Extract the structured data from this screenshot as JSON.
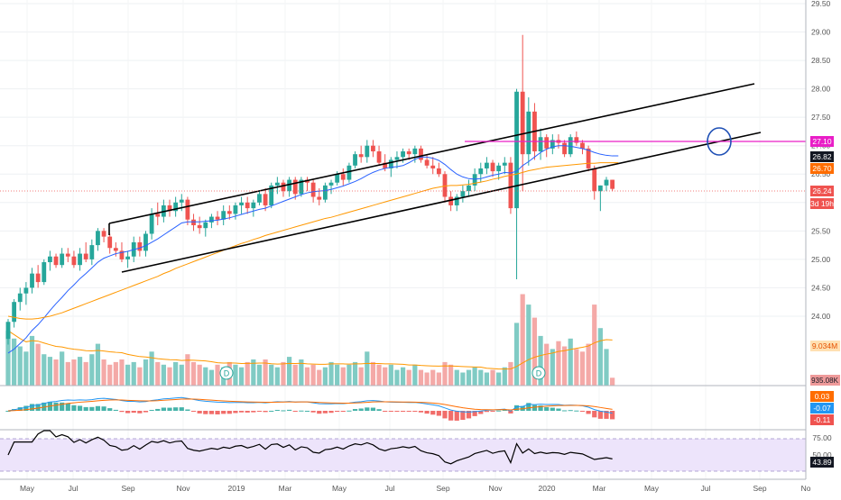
{
  "price_axis": {
    "ticks": [
      "29.50",
      "29.00",
      "28.50",
      "28.00",
      "27.50",
      "27.00",
      "26.50",
      "26.00",
      "25.50",
      "25.00",
      "24.50",
      "24.00"
    ],
    "min": 23.6,
    "max": 29.5
  },
  "time_axis": {
    "labels": [
      "May",
      "Jul",
      "Sep",
      "Nov",
      "2019",
      "Mar",
      "May",
      "Jul",
      "Sep",
      "Nov",
      "2020",
      "Mar",
      "May",
      "Jul",
      "Sep",
      "No"
    ]
  },
  "badges": {
    "horizontal_level": "27.10",
    "ma_fast": "26.82",
    "ma_slow": "26.70",
    "last_price": "26.24",
    "countdown": "3d 19h",
    "volume_ma": "9.034M",
    "volume": "935.08K",
    "macd_line": "0.03",
    "macd_signal": "-0.07",
    "macd_hist": "-0.11",
    "rsi_upper": "75.00",
    "rsi_value": "43.89",
    "rsi_mid": "50.00"
  },
  "dividend_marker": "D",
  "colors": {
    "up": "#26a69a",
    "down": "#ef5350",
    "ma_fast": "#2962ff",
    "ma_slow": "#ff9800",
    "trendline": "#000000",
    "level": "#e91ec7",
    "circle": "#1e4fb5",
    "rsi_band": "#ede4fb"
  },
  "chart_data": {
    "type": "candlestick",
    "period": "weekly",
    "start": "2018-04",
    "candles": [
      [
        23.6,
        23.95,
        23.5,
        23.9
      ],
      [
        23.9,
        24.3,
        23.8,
        24.25
      ],
      [
        24.25,
        24.5,
        24.1,
        24.4
      ],
      [
        24.4,
        24.6,
        24.2,
        24.5
      ],
      [
        24.5,
        24.85,
        24.4,
        24.75
      ],
      [
        24.75,
        24.9,
        24.5,
        24.6
      ],
      [
        24.6,
        25.0,
        24.55,
        24.95
      ],
      [
        24.95,
        25.15,
        24.8,
        25.05
      ],
      [
        25.05,
        25.1,
        24.85,
        24.9
      ],
      [
        24.9,
        25.2,
        24.85,
        25.1
      ],
      [
        25.1,
        25.2,
        24.95,
        25.05
      ],
      [
        25.05,
        25.15,
        24.85,
        24.9
      ],
      [
        24.9,
        25.2,
        24.8,
        25.1
      ],
      [
        25.1,
        25.3,
        24.95,
        25.0
      ],
      [
        25.0,
        25.35,
        24.9,
        25.25
      ],
      [
        25.25,
        25.55,
        25.15,
        25.5
      ],
      [
        25.5,
        25.55,
        25.3,
        25.4
      ],
      [
        25.4,
        25.45,
        25.1,
        25.2
      ],
      [
        25.2,
        25.3,
        25.05,
        25.15
      ],
      [
        25.15,
        25.3,
        24.95,
        25.0
      ],
      [
        25.0,
        25.15,
        24.85,
        25.05
      ],
      [
        25.05,
        25.4,
        24.95,
        25.3
      ],
      [
        25.3,
        25.4,
        25.05,
        25.15
      ],
      [
        25.15,
        25.5,
        25.05,
        25.45
      ],
      [
        25.45,
        25.9,
        25.35,
        25.8
      ],
      [
        25.8,
        26.0,
        25.6,
        25.75
      ],
      [
        25.75,
        26.05,
        25.65,
        25.95
      ],
      [
        25.95,
        26.05,
        25.75,
        25.85
      ],
      [
        25.85,
        26.1,
        25.75,
        26.0
      ],
      [
        26.0,
        26.15,
        25.85,
        26.05
      ],
      [
        26.05,
        26.1,
        25.6,
        25.7
      ],
      [
        25.7,
        25.8,
        25.5,
        25.6
      ],
      [
        25.6,
        25.75,
        25.45,
        25.55
      ],
      [
        25.55,
        25.7,
        25.4,
        25.65
      ],
      [
        25.65,
        25.8,
        25.55,
        25.75
      ],
      [
        25.75,
        25.85,
        25.6,
        25.7
      ],
      [
        25.7,
        25.95,
        25.6,
        25.85
      ],
      [
        25.85,
        25.95,
        25.7,
        25.8
      ],
      [
        25.8,
        26.0,
        25.7,
        25.95
      ],
      [
        25.95,
        26.1,
        25.8,
        26.0
      ],
      [
        26.0,
        26.1,
        25.8,
        25.9
      ],
      [
        25.9,
        26.05,
        25.75,
        26.0
      ],
      [
        26.0,
        26.2,
        25.95,
        26.15
      ],
      [
        26.15,
        26.25,
        25.85,
        25.95
      ],
      [
        25.95,
        26.35,
        25.9,
        26.3
      ],
      [
        26.3,
        26.45,
        26.15,
        26.35
      ],
      [
        26.35,
        26.4,
        26.1,
        26.2
      ],
      [
        26.2,
        26.45,
        26.1,
        26.4
      ],
      [
        26.4,
        26.45,
        26.05,
        26.15
      ],
      [
        26.15,
        26.45,
        26.1,
        26.4
      ],
      [
        26.4,
        26.45,
        26.2,
        26.35
      ],
      [
        26.35,
        26.4,
        26.0,
        26.1
      ],
      [
        26.1,
        26.25,
        25.95,
        26.05
      ],
      [
        26.05,
        26.35,
        26.0,
        26.3
      ],
      [
        26.3,
        26.4,
        26.15,
        26.35
      ],
      [
        26.35,
        26.55,
        26.3,
        26.5
      ],
      [
        26.5,
        26.6,
        26.3,
        26.4
      ],
      [
        26.4,
        26.7,
        26.35,
        26.65
      ],
      [
        26.65,
        26.9,
        26.6,
        26.85
      ],
      [
        26.85,
        27.0,
        26.7,
        26.8
      ],
      [
        26.8,
        27.1,
        26.7,
        27.0
      ],
      [
        27.0,
        27.1,
        26.8,
        26.9
      ],
      [
        26.9,
        27.0,
        26.65,
        26.7
      ],
      [
        26.7,
        26.85,
        26.55,
        26.6
      ],
      [
        26.6,
        26.8,
        26.45,
        26.75
      ],
      [
        26.75,
        26.9,
        26.6,
        26.8
      ],
      [
        26.8,
        26.95,
        26.7,
        26.9
      ],
      [
        26.9,
        26.95,
        26.75,
        26.85
      ],
      [
        26.85,
        27.0,
        26.7,
        26.95
      ],
      [
        26.95,
        27.0,
        26.7,
        26.75
      ],
      [
        26.75,
        26.85,
        26.6,
        26.65
      ],
      [
        26.65,
        26.8,
        26.5,
        26.6
      ],
      [
        26.6,
        26.7,
        26.45,
        26.5
      ],
      [
        26.5,
        26.55,
        26.0,
        26.1
      ],
      [
        26.1,
        26.2,
        25.85,
        25.95
      ],
      [
        25.95,
        26.15,
        25.85,
        26.1
      ],
      [
        26.1,
        26.3,
        26.0,
        26.2
      ],
      [
        26.2,
        26.4,
        26.1,
        26.3
      ],
      [
        26.3,
        26.6,
        26.2,
        26.5
      ],
      [
        26.5,
        26.7,
        26.35,
        26.6
      ],
      [
        26.6,
        26.8,
        26.5,
        26.7
      ],
      [
        26.7,
        26.75,
        26.45,
        26.55
      ],
      [
        26.55,
        26.7,
        26.4,
        26.65
      ],
      [
        26.65,
        26.8,
        26.5,
        26.7
      ],
      [
        26.7,
        26.8,
        25.8,
        25.9
      ],
      [
        25.9,
        28.0,
        24.65,
        27.95
      ],
      [
        27.95,
        28.95,
        26.2,
        26.85
      ],
      [
        26.85,
        27.85,
        26.65,
        27.6
      ],
      [
        27.6,
        27.75,
        26.75,
        26.9
      ],
      [
        26.9,
        27.3,
        26.75,
        27.15
      ],
      [
        27.15,
        27.2,
        26.8,
        26.95
      ],
      [
        26.95,
        27.2,
        26.85,
        27.1
      ],
      [
        27.1,
        27.2,
        26.95,
        27.05
      ],
      [
        27.05,
        27.1,
        26.8,
        26.85
      ],
      [
        26.85,
        27.2,
        26.8,
        27.15
      ],
      [
        27.15,
        27.25,
        27.0,
        27.05
      ],
      [
        27.05,
        27.1,
        26.85,
        26.95
      ],
      [
        26.95,
        27.0,
        26.55,
        26.6
      ],
      [
        26.6,
        26.65,
        26.05,
        26.2
      ],
      [
        26.2,
        26.3,
        25.85,
        26.3
      ],
      [
        26.3,
        26.45,
        26.2,
        26.4
      ],
      [
        26.4,
        26.4,
        26.2,
        26.24
      ]
    ],
    "moving_averages": [
      {
        "name": "MA fast",
        "color": "#2962ff",
        "values": [
          23.35,
          23.42,
          23.52,
          23.62,
          23.75,
          23.85,
          23.97,
          24.1,
          24.22,
          24.33,
          24.45,
          24.55,
          24.66,
          24.75,
          24.85,
          24.95,
          25.02,
          25.06,
          25.1,
          25.12,
          25.14,
          25.17,
          25.2,
          25.24,
          25.3,
          25.36,
          25.43,
          25.5,
          25.57,
          25.64,
          25.66,
          25.66,
          25.66,
          25.67,
          25.68,
          25.69,
          25.71,
          25.73,
          25.76,
          25.79,
          25.82,
          25.85,
          25.88,
          25.9,
          25.94,
          25.98,
          26.02,
          26.06,
          26.1,
          26.14,
          26.17,
          26.19,
          26.2,
          26.21,
          26.23,
          26.26,
          26.29,
          26.33,
          26.37,
          26.42,
          26.48,
          26.53,
          26.57,
          26.6,
          26.62,
          26.63,
          26.65,
          26.7,
          26.76,
          26.8,
          26.8,
          26.78,
          26.74,
          26.67,
          26.58,
          26.5,
          26.45,
          26.42,
          26.41,
          26.42,
          26.45,
          26.48,
          26.5,
          26.53,
          26.52,
          26.55,
          26.65,
          26.72,
          26.8,
          26.88,
          26.94,
          26.98,
          27.0,
          27.0,
          26.99,
          26.97,
          26.95,
          26.92,
          26.88,
          26.85,
          26.83,
          26.82,
          26.82
        ]
      },
      {
        "name": "MA slow",
        "color": "#ff9800",
        "values": [
          24.0,
          23.98,
          23.96,
          23.95,
          23.95,
          23.96,
          23.98,
          24.0,
          24.03,
          24.06,
          24.1,
          24.14,
          24.18,
          24.22,
          24.26,
          24.3,
          24.34,
          24.38,
          24.42,
          24.46,
          24.5,
          24.54,
          24.58,
          24.62,
          24.66,
          24.7,
          24.75,
          24.79,
          24.84,
          24.88,
          24.92,
          24.96,
          25.0,
          25.04,
          25.08,
          25.12,
          25.16,
          25.2,
          25.24,
          25.28,
          25.31,
          25.35,
          25.38,
          25.42,
          25.45,
          25.48,
          25.51,
          25.54,
          25.57,
          25.6,
          25.63,
          25.66,
          25.69,
          25.72,
          25.74,
          25.77,
          25.8,
          25.83,
          25.86,
          25.89,
          25.92,
          25.95,
          25.98,
          26.01,
          26.04,
          26.07,
          26.1,
          26.13,
          26.16,
          26.19,
          26.22,
          26.25,
          26.27,
          26.29,
          26.3,
          26.3,
          26.31,
          26.32,
          26.34,
          26.36,
          26.38,
          26.41,
          26.43,
          26.46,
          26.48,
          26.5,
          26.53,
          26.56,
          26.58,
          26.6,
          26.62,
          26.63,
          26.64,
          26.65,
          26.66,
          26.67,
          26.68,
          26.69,
          26.69,
          26.7,
          26.7,
          26.7,
          26.7
        ]
      }
    ],
    "volume": [
      2.1,
      1.8,
      1.5,
      1.3,
      1.9,
      1.6,
      1.2,
      1.1,
      1.0,
      1.3,
      0.9,
      1.0,
      1.1,
      0.9,
      1.2,
      1.6,
      1.0,
      0.8,
      0.9,
      1.0,
      0.8,
      0.9,
      0.7,
      1.0,
      1.3,
      0.9,
      0.8,
      0.7,
      0.9,
      0.8,
      1.2,
      0.9,
      0.8,
      0.7,
      0.6,
      0.8,
      0.7,
      0.9,
      0.8,
      0.7,
      0.9,
      1.0,
      0.8,
      1.0,
      0.8,
      0.7,
      0.9,
      1.1,
      0.8,
      1.0,
      0.7,
      0.8,
      0.6,
      0.7,
      0.9,
      0.8,
      0.7,
      0.8,
      0.9,
      0.7,
      1.3,
      0.9,
      0.8,
      0.7,
      0.8,
      0.6,
      0.7,
      0.6,
      0.8,
      0.6,
      0.5,
      0.6,
      0.5,
      0.9,
      0.8,
      0.6,
      0.5,
      0.6,
      0.7,
      0.6,
      0.5,
      0.6,
      0.5,
      0.7,
      0.9,
      2.4,
      3.5,
      3.1,
      2.6,
      1.9,
      1.6,
      1.4,
      1.7,
      1.5,
      1.8,
      1.4,
      1.3,
      1.6,
      3.1,
      2.2,
      1.4,
      0.3
    ]
  }
}
